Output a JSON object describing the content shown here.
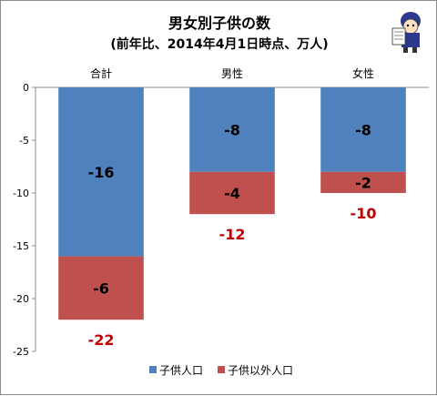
{
  "chart_data": {
    "type": "bar",
    "stacked": true,
    "title": "男女別子供の数",
    "subtitle": "(前年比、2014年4月1日時点、万人)",
    "categories": [
      "合計",
      "男性",
      "女性"
    ],
    "series": [
      {
        "name": "子供人口",
        "values": [
          -16,
          -8,
          -8
        ],
        "color": "#4f81bd"
      },
      {
        "name": "子供以外人口",
        "values": [
          -6,
          -4,
          -2
        ],
        "color": "#c0504d"
      }
    ],
    "totals": [
      -22,
      -12,
      -10
    ],
    "total_color": "#c00000",
    "ylim": [
      -25,
      0
    ],
    "y_ticks": [
      0,
      -5,
      -10,
      -15,
      -20,
      -25
    ],
    "xlabel": "",
    "ylabel": "",
    "grid": false,
    "legend": "bottom",
    "category_axis_position": "top"
  },
  "mascot_icon": "reading-newspaper-mascot-icon"
}
